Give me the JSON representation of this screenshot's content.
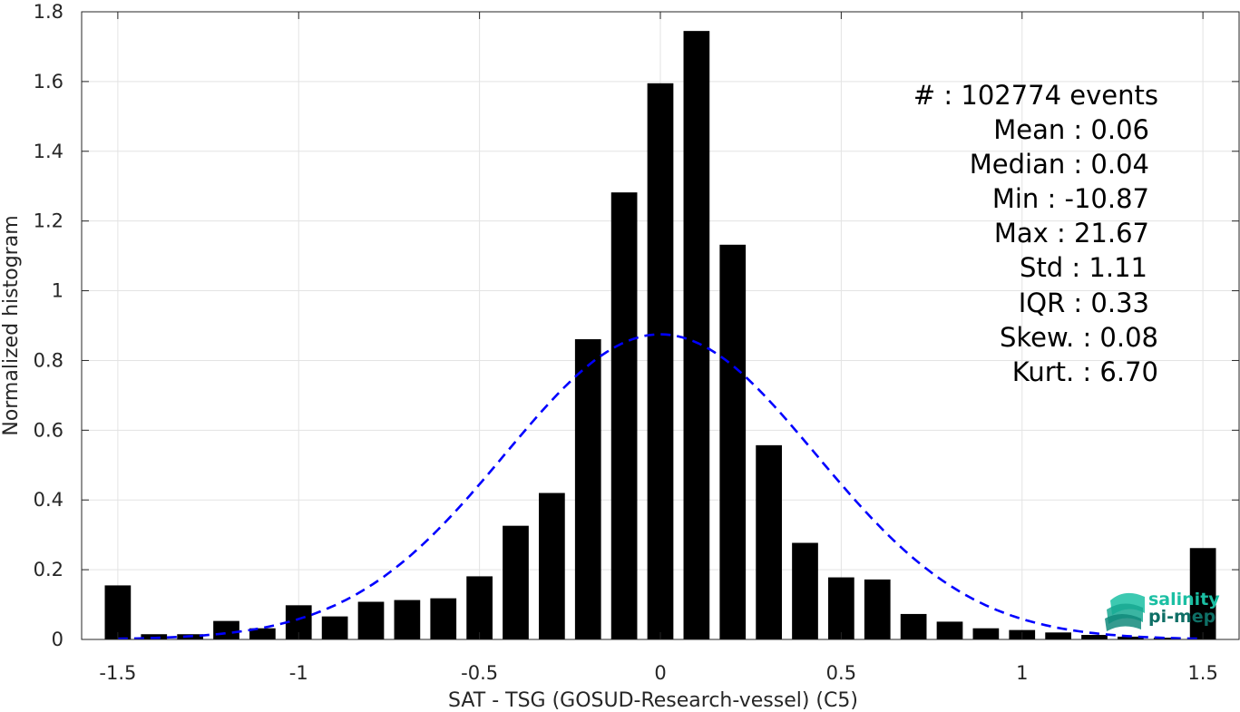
{
  "chart_data": {
    "type": "bar",
    "xlabel": "SAT - TSG (GOSUD-Research-vessel) (C5)",
    "ylabel": "Normalized histogram",
    "xlim": [
      -1.6,
      1.6
    ],
    "ylim": [
      0,
      1.8
    ],
    "xticks": [
      -1.5,
      -1,
      -0.5,
      0,
      0.5,
      1,
      1.5
    ],
    "xtick_labels": [
      "-1.5",
      "-1",
      "-0.5",
      "0",
      "0.5",
      "1",
      "1.5"
    ],
    "yticks": [
      0,
      0.2,
      0.4,
      0.6,
      0.8,
      1,
      1.2,
      1.4,
      1.6,
      1.8
    ],
    "ytick_labels": [
      "0",
      "0.2",
      "0.4",
      "0.6",
      "0.8",
      "1",
      "1.2",
      "1.4",
      "1.6",
      "1.8"
    ],
    "grid": true,
    "bin_width": 0.1,
    "bars": {
      "x": [
        -1.5,
        -1.4,
        -1.3,
        -1.2,
        -1.1,
        -1.0,
        -0.9,
        -0.8,
        -0.7,
        -0.6,
        -0.5,
        -0.4,
        -0.3,
        -0.2,
        -0.1,
        0.0,
        0.1,
        0.2,
        0.3,
        0.4,
        0.5,
        0.6,
        0.7,
        0.8,
        0.9,
        1.0,
        1.1,
        1.2,
        1.3,
        1.4,
        1.5
      ],
      "values": [
        0.155,
        0.015,
        0.015,
        0.053,
        0.032,
        0.098,
        0.066,
        0.108,
        0.113,
        0.118,
        0.181,
        0.326,
        0.42,
        0.861,
        1.282,
        1.595,
        1.745,
        1.132,
        0.557,
        0.277,
        0.178,
        0.172,
        0.073,
        0.051,
        0.032,
        0.027,
        0.02,
        0.013,
        0.008,
        0.005,
        0.262
      ],
      "color": "#000000"
    },
    "fit_curve": {
      "kind": "gaussian",
      "mean": 0.0,
      "peak": 0.875,
      "sigma": 0.43,
      "x_range": [
        -1.5,
        1.5
      ],
      "color": "#0000ff",
      "style": "dashed"
    }
  },
  "stats": [
    "#  : 102774 events",
    "Mean : 0.06",
    "Median : 0.04",
    "Min : -10.87",
    "Max : 21.67",
    "Std : 1.11",
    "IQR : 0.33",
    "Skew. : 0.08",
    "Kurt. : 6.70"
  ],
  "logo": {
    "line1": "salinity",
    "line2": "pi-mep",
    "colors": {
      "light": "#1bbfa3",
      "dark": "#0f6f66"
    }
  }
}
